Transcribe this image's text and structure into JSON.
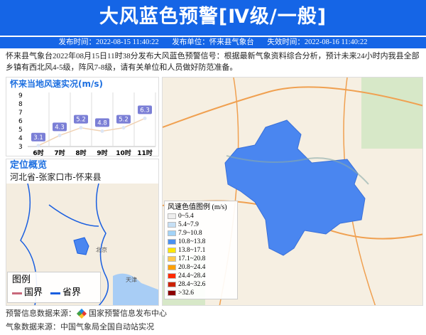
{
  "header": {
    "title": "大风蓝色预警[Ⅳ级/一般]"
  },
  "meta": {
    "publish_time": "发布时间：2022-08-15 11:40:22",
    "publisher": "发布单位：怀来县气象台",
    "expire_time": "失效时间：2022-08-16 11:40:22"
  },
  "description": "怀来县气象台2022年08月15日11时38分发布大风蓝色预警信号：根据最新气象资料综合分析，预计未来24小时内我县全部乡镇有西北风4-5级，阵风7-8级，请有关单位和人员做好防范准备。",
  "chart_data": {
    "type": "line",
    "title": "怀来当地风速实况(m/s)",
    "categories": [
      "6时",
      "7时",
      "8时",
      "9时",
      "10时",
      "11时"
    ],
    "values": [
      3.1,
      4.3,
      5.2,
      4.8,
      5.2,
      6.3
    ],
    "ylim": [
      3,
      9
    ],
    "yticks": [
      "3",
      "4",
      "5",
      "6",
      "7",
      "8",
      "9"
    ],
    "data_labels": [
      "3.1",
      "4.3",
      "5.2",
      "4.8",
      "5.2",
      "6.3"
    ],
    "line_color": "#f0d2b4",
    "label_color": "#7b7fd6",
    "grid": "vertical"
  },
  "location": {
    "title": "定位概览",
    "path": "河北省-张家口市-怀来县",
    "legend_title": "图例",
    "legend_items": [
      {
        "label": "国界",
        "color": "#c8687a"
      },
      {
        "label": "省界",
        "color": "#1a5fe0"
      }
    ],
    "city_labels": [
      "北京",
      "天津"
    ]
  },
  "wind_legend": {
    "title": "风速色值图例 (m/s)",
    "items": [
      {
        "label": "0~5.4",
        "color": "#eeeeee"
      },
      {
        "label": "5.4~7.9",
        "color": "#c6dff5"
      },
      {
        "label": "7.9~10.8",
        "color": "#a3d3f7"
      },
      {
        "label": "10.8~13.8",
        "color": "#4a90f0"
      },
      {
        "label": "13.8~17.1",
        "color": "#ffe600"
      },
      {
        "label": "17.1~20.8",
        "color": "#ffc94d"
      },
      {
        "label": "20.8~24.4",
        "color": "#ffa000"
      },
      {
        "label": "24.4~28.4",
        "color": "#ff2a00"
      },
      {
        "label": "28.4~32.6",
        "color": "#cc2200"
      },
      {
        "label": ">32.6",
        "color": "#8b0000"
      }
    ]
  },
  "footer": {
    "warning_source": "预警信息数据来源：",
    "warning_source_name": "国家预警信息发布中心",
    "weather_source": "气象数据来源：中国气象局全国自动站实况"
  },
  "colors": {
    "accent": "#1565e6",
    "region_fill": "#4a86f0"
  }
}
